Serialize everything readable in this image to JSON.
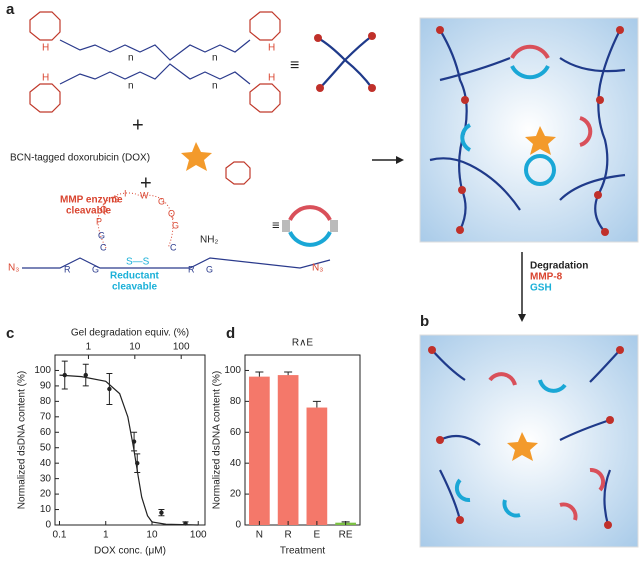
{
  "panel_labels": [
    "a",
    "b",
    "c",
    "d"
  ],
  "scheme": {
    "dox_label": "BCN-tagged doxorubicin (DOX)",
    "mmp_label": [
      "MMP enzyme",
      "cleavable"
    ],
    "reductant_label": [
      "Reductant",
      "cleavable"
    ],
    "degradation": "Degradation",
    "mmp8": "MMP-8",
    "gsh": "GSH",
    "plus": [
      "+",
      "+"
    ],
    "equiv": [
      "≡",
      "≡"
    ],
    "peg_n": [
      "n",
      "n",
      "n",
      "n"
    ],
    "h_atoms": [
      "H",
      "H",
      "H",
      "H"
    ],
    "azide": [
      "N₃",
      "N₃"
    ],
    "amine": "NH₂",
    "disulfide": "S—S",
    "peptide_letters": [
      "R",
      "G",
      "C",
      "G",
      "P",
      "Q",
      "G",
      "I",
      "W",
      "G",
      "Q",
      "G",
      "C",
      "R",
      "G"
    ]
  },
  "chart_data": [
    {
      "type": "scatter",
      "xlabel": "DOX conc. (μM)",
      "ylabel": "Normalized dsDNA content (%)",
      "x2label": "Gel degradation equiv. (%)",
      "xscale": "log",
      "xlim": [
        0.08,
        140
      ],
      "xticks": [
        0.1,
        1,
        10,
        100
      ],
      "x2lim": [
        0.19,
        326
      ],
      "x2ticks": [
        1,
        10,
        100
      ],
      "ylim": [
        0,
        110
      ],
      "yticks": [
        0,
        10,
        20,
        30,
        40,
        50,
        60,
        70,
        80,
        90,
        100
      ],
      "series": [
        {
          "x": [
            0.13,
            0.37,
            1.2,
            4.1,
            4.8,
            16,
            53
          ],
          "values": [
            97,
            97,
            88,
            54,
            40,
            8,
            1
          ],
          "errors": [
            9,
            7,
            10,
            6,
            6,
            2,
            1
          ],
          "color": "#222222"
        },
        {
          "type": "line",
          "x": [
            0.1,
            0.3,
            1,
            2,
            3,
            4,
            5,
            6,
            8,
            10,
            20,
            100
          ],
          "values": [
            97,
            96,
            93,
            85,
            70,
            50,
            32,
            18,
            6,
            2,
            0.5,
            0
          ],
          "color": "#222222"
        }
      ]
    },
    {
      "type": "bar",
      "title": "R∧E",
      "xlabel": "Treatment",
      "ylabel": "Normalized dsDNA content (%)",
      "categories": [
        "N",
        "R",
        "E",
        "RE"
      ],
      "values": [
        96,
        97,
        76,
        1.5
      ],
      "errors": [
        3,
        2,
        4,
        0.5
      ],
      "colors": [
        "#f4786a",
        "#f4786a",
        "#f4786a",
        "#7bc043"
      ],
      "ylim": [
        0,
        110
      ],
      "yticks": [
        0,
        20,
        40,
        60,
        80,
        100
      ]
    }
  ]
}
